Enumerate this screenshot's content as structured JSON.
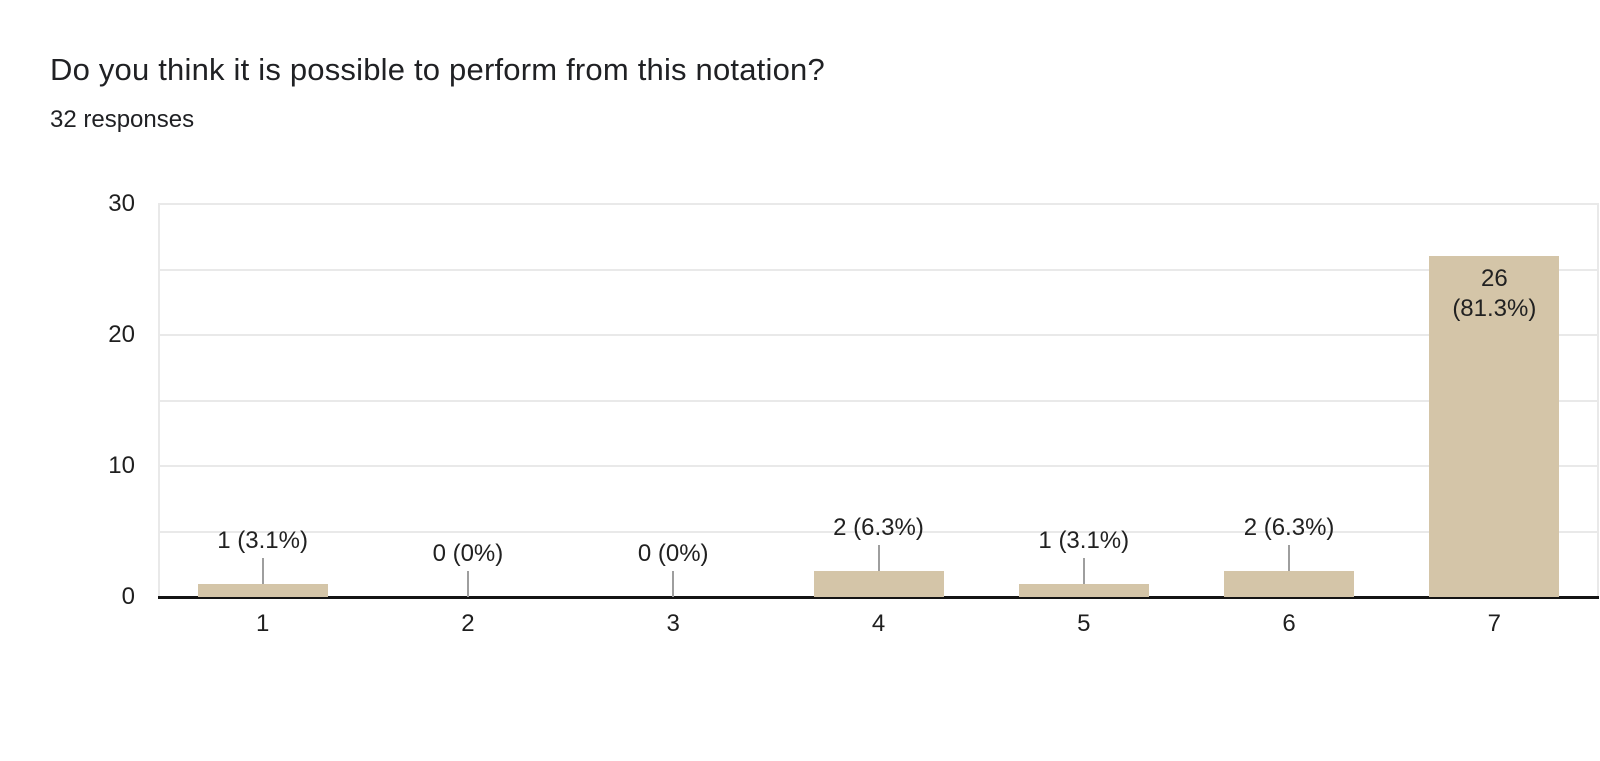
{
  "header": {
    "title": "Do you think it is possible to perform from this notation?",
    "responses": "32 responses"
  },
  "chart_data": {
    "type": "bar",
    "title": "Do you think it is possible to perform from this notation?",
    "subtitle": "32 responses",
    "categories": [
      "1",
      "2",
      "3",
      "4",
      "5",
      "6",
      "7"
    ],
    "values": [
      1,
      0,
      0,
      2,
      1,
      2,
      26
    ],
    "bar_labels": [
      "1 (3.1%)",
      "0 (0%)",
      "0 (0%)",
      "2 (6.3%)",
      "1 (3.1%)",
      "2 (6.3%)",
      "26 (81.3%)"
    ],
    "inside_bar_label": {
      "category": "7",
      "lines": [
        "26",
        "(81.3%)"
      ]
    },
    "xlabel": "",
    "ylabel": "",
    "ylim": [
      0,
      30
    ],
    "y_tick_labels": [
      "0",
      "10",
      "20",
      "30"
    ],
    "grid_step": 5,
    "legend": "none",
    "grid_on": true,
    "colors": {
      "bar": "#d4c5a8",
      "label_text": "#212121",
      "axis_text": "#1f1f1f",
      "gridline": "#e9e9e9",
      "baseline": "#141414",
      "connector": "#9e9e9e",
      "title_text": "#202124",
      "background": "#ffffff"
    }
  }
}
